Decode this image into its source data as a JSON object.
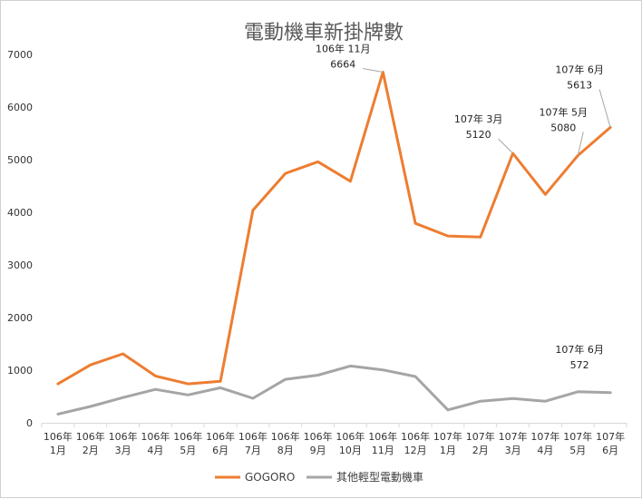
{
  "chart_data": {
    "type": "line",
    "title": "電動機車新掛牌數",
    "ylim": [
      0,
      7000
    ],
    "yticks": [
      0,
      1000,
      2000,
      3000,
      4000,
      5000,
      6000,
      7000
    ],
    "grid": false,
    "legend_position": "bottom",
    "categories": [
      [
        "106年",
        "1月"
      ],
      [
        "106年",
        "2月"
      ],
      [
        "106年",
        "3月"
      ],
      [
        "106年",
        "4月"
      ],
      [
        "106年",
        "5月"
      ],
      [
        "106年",
        "6月"
      ],
      [
        "106年",
        "7月"
      ],
      [
        "106年",
        "8月"
      ],
      [
        "106年",
        "9月"
      ],
      [
        "106年",
        "10月"
      ],
      [
        "106年",
        "11月"
      ],
      [
        "106年",
        "12月"
      ],
      [
        "107年",
        "1月"
      ],
      [
        "107年",
        "2月"
      ],
      [
        "107年",
        "3月"
      ],
      [
        "107年",
        "4月"
      ],
      [
        "107年",
        "5月"
      ],
      [
        "107年",
        "6月"
      ]
    ],
    "series": [
      {
        "name": "GOGORO",
        "color": "#ED7D31",
        "values": [
          740,
          1100,
          1310,
          890,
          740,
          790,
          4040,
          4740,
          4960,
          4590,
          6664,
          3790,
          3550,
          3530,
          5120,
          4340,
          5080,
          5613
        ]
      },
      {
        "name": "其他輕型電動機車",
        "color": "#A5A5A5",
        "values": [
          165,
          310,
          480,
          635,
          530,
          665,
          465,
          825,
          905,
          1080,
          1005,
          880,
          245,
          410,
          460,
          410,
          590,
          572
        ]
      }
    ],
    "annotations": [
      {
        "series": 0,
        "index": 10,
        "lines": [
          "106年 11月",
          "6664"
        ]
      },
      {
        "series": 0,
        "index": 14,
        "lines": [
          "107年 3月",
          "5120"
        ]
      },
      {
        "series": 0,
        "index": 16,
        "lines": [
          "107年 5月",
          "5080"
        ]
      },
      {
        "series": 0,
        "index": 17,
        "lines": [
          "107年 6月",
          "5613"
        ]
      },
      {
        "series": 1,
        "index": 17,
        "lines": [
          "107年 6月",
          "572"
        ]
      }
    ]
  }
}
